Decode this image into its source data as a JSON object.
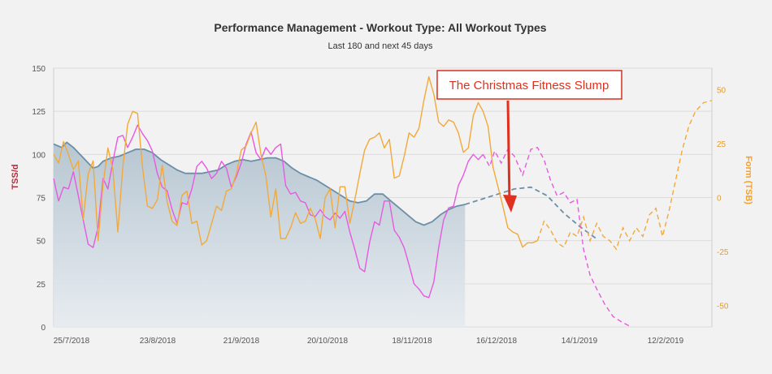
{
  "chart_data": {
    "type": "line",
    "title": "Performance Management - Workout Type: All Workout Types",
    "subtitle": "Last 180 and next 45 days",
    "ylabel": "TSS/d",
    "y2label": "Form (TSB)",
    "ylim": [
      0,
      150
    ],
    "y2lim": [
      -60,
      60
    ],
    "yticks": [
      "0",
      "25",
      "50",
      "75",
      "100",
      "125",
      "150"
    ],
    "y2ticks": [
      "-50",
      "-25",
      "0",
      "25",
      "50"
    ],
    "xticks": [
      "25/7/2018",
      "23/8/2018",
      "21/9/2018",
      "20/10/2018",
      "18/11/2018",
      "16/12/2018",
      "14/1/2019",
      "12/2/2019"
    ],
    "grid": true,
    "annotation": {
      "text": "The Christmas Fitness Slump",
      "arrow_to_day": 144,
      "arrow_to_value": 67
    },
    "colors": {
      "fitness": "#6b8fa8",
      "fitness_fill": "#c5d2dc",
      "fatigue": "#e75ae0",
      "form": "#f2a93a",
      "annotation": "#e0301e",
      "grid": "#dcdcdc"
    },
    "series": [
      {
        "name": "CTL",
        "axis": "left",
        "style": "area",
        "points": [
          [
            0,
            106
          ],
          [
            5,
            104
          ],
          [
            8,
            107
          ],
          [
            12,
            104
          ],
          [
            16,
            100
          ],
          [
            20,
            96
          ],
          [
            24,
            92
          ],
          [
            27,
            93
          ],
          [
            30,
            96
          ],
          [
            35,
            98
          ],
          [
            40,
            99
          ],
          [
            45,
            101
          ],
          [
            50,
            103
          ],
          [
            55,
            103
          ],
          [
            60,
            101
          ],
          [
            65,
            97
          ],
          [
            70,
            94
          ],
          [
            75,
            91
          ],
          [
            80,
            89
          ],
          [
            85,
            89
          ],
          [
            90,
            89
          ],
          [
            95,
            90
          ],
          [
            100,
            91
          ],
          [
            105,
            94
          ],
          [
            110,
            96
          ],
          [
            115,
            97
          ],
          [
            120,
            96
          ],
          [
            125,
            97
          ],
          [
            130,
            98
          ],
          [
            135,
            98
          ],
          [
            140,
            96
          ],
          [
            145,
            92
          ],
          [
            150,
            89
          ],
          [
            155,
            87
          ],
          [
            160,
            85
          ],
          [
            165,
            82
          ],
          [
            170,
            79
          ],
          [
            175,
            76
          ],
          [
            180,
            73
          ],
          [
            185,
            72
          ],
          [
            190,
            73
          ],
          [
            195,
            77
          ],
          [
            200,
            77
          ],
          [
            205,
            73
          ],
          [
            210,
            69
          ],
          [
            215,
            65
          ],
          [
            220,
            61
          ],
          [
            225,
            59
          ],
          [
            230,
            61
          ],
          [
            235,
            65
          ],
          [
            240,
            68
          ],
          [
            245,
            70
          ],
          [
            250,
            71
          ]
        ],
        "forecast": [
          [
            250,
            71
          ],
          [
            260,
            74
          ],
          [
            270,
            77
          ],
          [
            280,
            80
          ],
          [
            290,
            81
          ],
          [
            300,
            76
          ],
          [
            310,
            66
          ],
          [
            320,
            58
          ],
          [
            330,
            51
          ]
        ]
      },
      {
        "name": "ATL",
        "axis": "left",
        "style": "line",
        "points": [
          [
            0,
            86
          ],
          [
            3,
            73
          ],
          [
            6,
            81
          ],
          [
            9,
            80
          ],
          [
            12,
            90
          ],
          [
            15,
            76
          ],
          [
            18,
            62
          ],
          [
            21,
            48
          ],
          [
            24,
            46
          ],
          [
            27,
            58
          ],
          [
            30,
            86
          ],
          [
            33,
            80
          ],
          [
            36,
            96
          ],
          [
            39,
            110
          ],
          [
            42,
            111
          ],
          [
            45,
            104
          ],
          [
            48,
            110
          ],
          [
            51,
            117
          ],
          [
            54,
            112
          ],
          [
            57,
            108
          ],
          [
            60,
            102
          ],
          [
            63,
            89
          ],
          [
            66,
            81
          ],
          [
            69,
            79
          ],
          [
            72,
            68
          ],
          [
            75,
            60
          ],
          [
            78,
            72
          ],
          [
            81,
            71
          ],
          [
            84,
            80
          ],
          [
            87,
            93
          ],
          [
            90,
            96
          ],
          [
            93,
            92
          ],
          [
            96,
            86
          ],
          [
            99,
            89
          ],
          [
            102,
            96
          ],
          [
            105,
            92
          ],
          [
            108,
            81
          ],
          [
            111,
            87
          ],
          [
            114,
            95
          ],
          [
            117,
            106
          ],
          [
            120,
            113
          ],
          [
            123,
            101
          ],
          [
            126,
            97
          ],
          [
            129,
            104
          ],
          [
            132,
            100
          ],
          [
            135,
            104
          ],
          [
            138,
            106
          ],
          [
            141,
            82
          ],
          [
            144,
            77
          ],
          [
            147,
            78
          ],
          [
            150,
            73
          ],
          [
            153,
            72
          ],
          [
            156,
            65
          ],
          [
            159,
            64
          ],
          [
            162,
            68
          ],
          [
            165,
            64
          ],
          [
            168,
            62
          ],
          [
            171,
            66
          ],
          [
            174,
            63
          ],
          [
            177,
            67
          ],
          [
            180,
            55
          ],
          [
            183,
            45
          ],
          [
            186,
            34
          ],
          [
            189,
            32
          ],
          [
            192,
            49
          ],
          [
            195,
            61
          ],
          [
            198,
            59
          ],
          [
            201,
            73
          ],
          [
            204,
            73
          ],
          [
            207,
            56
          ],
          [
            210,
            52
          ],
          [
            213,
            46
          ],
          [
            216,
            36
          ],
          [
            219,
            25
          ],
          [
            222,
            22
          ],
          [
            225,
            18
          ],
          [
            228,
            17
          ],
          [
            231,
            26
          ],
          [
            234,
            46
          ],
          [
            237,
            62
          ],
          [
            240,
            69
          ],
          [
            243,
            70
          ],
          [
            246,
            82
          ],
          [
            249,
            88
          ],
          [
            252,
            96
          ],
          [
            255,
            100
          ],
          [
            258,
            97
          ],
          [
            261,
            100
          ]
        ],
        "forecast": [
          [
            261,
            100
          ],
          [
            265,
            93
          ],
          [
            268,
            102
          ],
          [
            272,
            95
          ],
          [
            276,
            103
          ],
          [
            280,
            99
          ],
          [
            285,
            88
          ],
          [
            290,
            103
          ],
          [
            294,
            104
          ],
          [
            298,
            97
          ],
          [
            302,
            85
          ],
          [
            306,
            76
          ],
          [
            310,
            78
          ],
          [
            314,
            72
          ],
          [
            318,
            74
          ],
          [
            322,
            45
          ],
          [
            326,
            30
          ],
          [
            330,
            22
          ],
          [
            335,
            13
          ],
          [
            340,
            6
          ],
          [
            345,
            3
          ],
          [
            351,
            0
          ]
        ]
      },
      {
        "name": "TSB",
        "axis": "right",
        "style": "line",
        "points": [
          [
            0,
            20
          ],
          [
            3,
            16
          ],
          [
            6,
            26
          ],
          [
            9,
            20
          ],
          [
            12,
            13
          ],
          [
            15,
            17
          ],
          [
            18,
            -10
          ],
          [
            21,
            11
          ],
          [
            24,
            17
          ],
          [
            27,
            -20
          ],
          [
            30,
            6
          ],
          [
            33,
            23
          ],
          [
            36,
            13
          ],
          [
            39,
            -16
          ],
          [
            42,
            14
          ],
          [
            45,
            34
          ],
          [
            48,
            40
          ],
          [
            51,
            39
          ],
          [
            54,
            14
          ],
          [
            57,
            -4
          ],
          [
            60,
            -5
          ],
          [
            63,
            -1
          ],
          [
            66,
            15
          ],
          [
            69,
            -2
          ],
          [
            72,
            -11
          ],
          [
            75,
            -13
          ],
          [
            78,
            1
          ],
          [
            81,
            3
          ],
          [
            84,
            -12
          ],
          [
            87,
            -11
          ],
          [
            90,
            -22
          ],
          [
            93,
            -20
          ],
          [
            96,
            -12
          ],
          [
            99,
            -4
          ],
          [
            102,
            -6
          ],
          [
            105,
            3
          ],
          [
            108,
            4
          ],
          [
            111,
            11
          ],
          [
            114,
            22
          ],
          [
            117,
            24
          ],
          [
            120,
            30
          ],
          [
            123,
            35
          ],
          [
            126,
            20
          ],
          [
            129,
            10
          ],
          [
            132,
            -9
          ],
          [
            135,
            4
          ],
          [
            138,
            -19
          ],
          [
            141,
            -19
          ],
          [
            144,
            -14
          ],
          [
            147,
            -7
          ],
          [
            150,
            -12
          ],
          [
            153,
            -11
          ],
          [
            156,
            -5
          ],
          [
            159,
            -10
          ],
          [
            162,
            -19
          ],
          [
            165,
            0
          ],
          [
            168,
            4
          ],
          [
            171,
            -14
          ],
          [
            174,
            5
          ],
          [
            177,
            5
          ],
          [
            180,
            -12
          ],
          [
            183,
            -1
          ],
          [
            186,
            11
          ],
          [
            189,
            22
          ],
          [
            192,
            27
          ],
          [
            195,
            28
          ],
          [
            198,
            30
          ],
          [
            201,
            23
          ],
          [
            204,
            27
          ],
          [
            207,
            9
          ],
          [
            210,
            10
          ],
          [
            213,
            19
          ],
          [
            216,
            30
          ],
          [
            219,
            28
          ],
          [
            222,
            32
          ],
          [
            225,
            45
          ],
          [
            228,
            56
          ],
          [
            231,
            48
          ],
          [
            234,
            35
          ],
          [
            237,
            33
          ],
          [
            240,
            36
          ],
          [
            243,
            35
          ],
          [
            246,
            30
          ],
          [
            249,
            21
          ],
          [
            252,
            23
          ],
          [
            255,
            38
          ],
          [
            258,
            44
          ],
          [
            261,
            40
          ],
          [
            264,
            33
          ],
          [
            267,
            14
          ],
          [
            270,
            5
          ],
          [
            273,
            -4
          ],
          [
            276,
            -14
          ],
          [
            279,
            -16
          ],
          [
            282,
            -17
          ],
          [
            285,
            -23
          ],
          [
            288,
            -21
          ],
          [
            291,
            -21
          ],
          [
            294,
            -20
          ]
        ],
        "forecast": [
          [
            294,
            -20
          ],
          [
            298,
            -11
          ],
          [
            302,
            -15
          ],
          [
            306,
            -21
          ],
          [
            310,
            -23
          ],
          [
            314,
            -16
          ],
          [
            318,
            -18
          ],
          [
            322,
            -9
          ],
          [
            326,
            -20
          ],
          [
            330,
            -12
          ],
          [
            334,
            -18
          ],
          [
            338,
            -20
          ],
          [
            342,
            -24
          ],
          [
            346,
            -14
          ],
          [
            350,
            -20
          ],
          [
            354,
            -14
          ],
          [
            358,
            -18
          ],
          [
            362,
            -8
          ],
          [
            366,
            -5
          ],
          [
            370,
            -18
          ],
          [
            374,
            -6
          ],
          [
            378,
            8
          ],
          [
            382,
            22
          ],
          [
            386,
            33
          ],
          [
            390,
            40
          ],
          [
            395,
            44
          ],
          [
            400,
            45
          ]
        ]
      }
    ]
  }
}
